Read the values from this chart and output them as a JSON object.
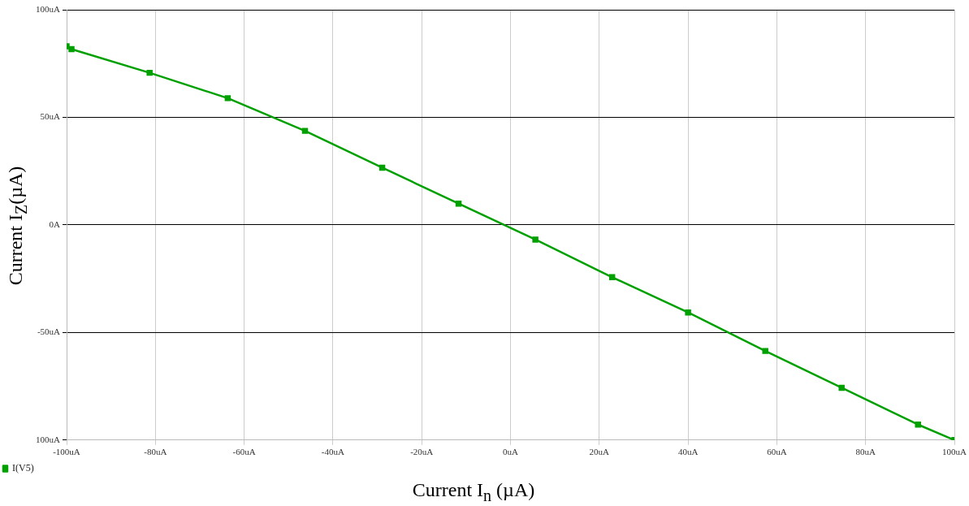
{
  "chart_data": {
    "type": "line",
    "xlabel": "Current I$_{n}$ (µA)",
    "ylabel": "Current I$_{Z}$(µA)",
    "x": [
      -100,
      -98.9,
      -81.3,
      -63.7,
      -46.3,
      -28.9,
      -11.7,
      5.6,
      22.9,
      40.0,
      57.4,
      74.6,
      91.8,
      100
    ],
    "series": [
      {
        "name": "I(V5)",
        "color": "#00a000",
        "values": [
          83,
          81.7,
          70.7,
          58.9,
          43.7,
          26.6,
          9.9,
          -6.8,
          -24.3,
          -40.7,
          -58.6,
          -75.7,
          -92.8,
          -100
        ]
      }
    ],
    "xlim": [
      -100,
      100
    ],
    "xticks": [
      {
        "value": -100,
        "label": "-100uA"
      },
      {
        "value": -80,
        "label": "-80uA"
      },
      {
        "value": -60,
        "label": "-60uA"
      },
      {
        "value": -40,
        "label": "-40uA"
      },
      {
        "value": -20,
        "label": "-20uA"
      },
      {
        "value": 0,
        "label": "0uA"
      },
      {
        "value": 20,
        "label": "20uA"
      },
      {
        "value": 40,
        "label": "40uA"
      },
      {
        "value": 60,
        "label": "60uA"
      },
      {
        "value": 80,
        "label": "80uA"
      },
      {
        "value": 100,
        "label": "100uA"
      }
    ],
    "ylim": [
      -100,
      100
    ],
    "yticks": [
      {
        "value": -100,
        "label": "100uA"
      },
      {
        "value": -50,
        "label": "-50uA"
      },
      {
        "value": 0,
        "label": "0A"
      },
      {
        "value": 50,
        "label": "50uA"
      },
      {
        "value": 100,
        "label": "100uA"
      }
    ],
    "grid": true,
    "legend": "bottom left",
    "marker": "square",
    "line_style": "solid"
  }
}
